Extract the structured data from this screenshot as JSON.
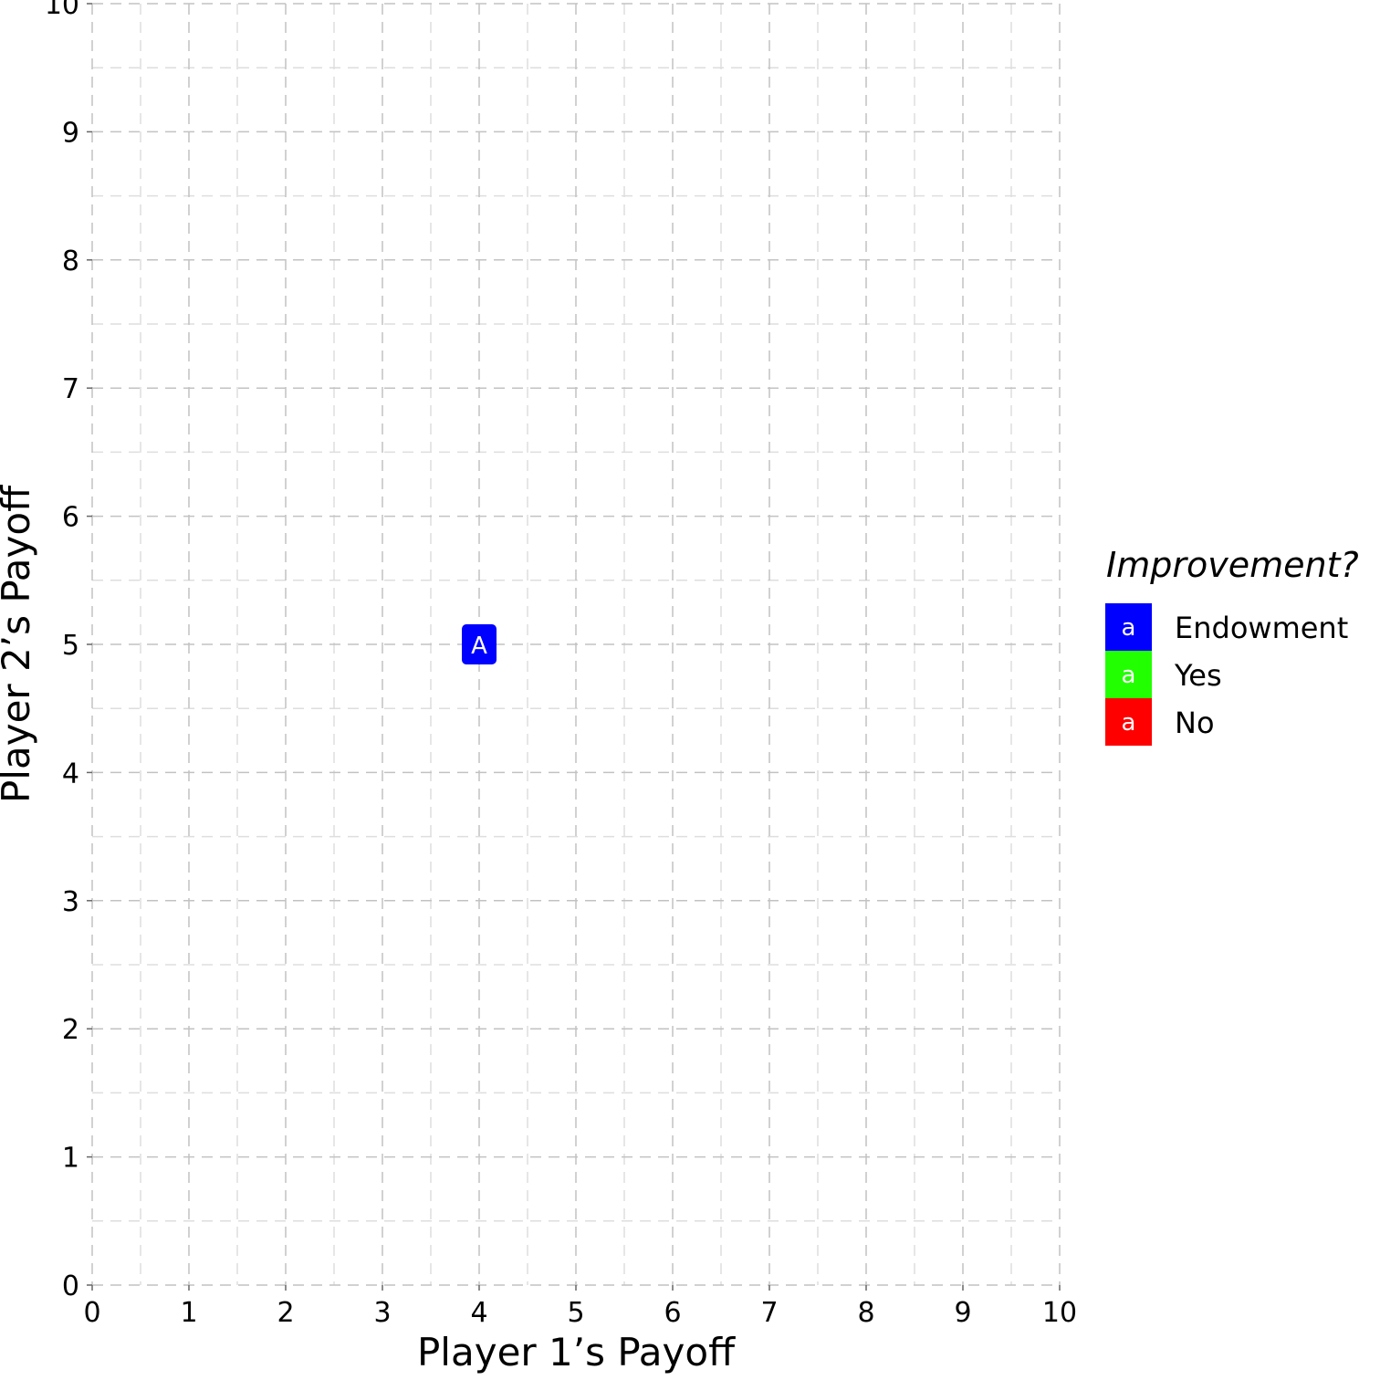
{
  "chart_data": {
    "type": "scatter",
    "xlabel": "Player 1’s Payoff",
    "ylabel": "Player 2’s Payoff",
    "xlim": [
      0,
      10
    ],
    "ylim": [
      0,
      10
    ],
    "x_ticks": [
      "0",
      "1",
      "2",
      "3",
      "4",
      "5",
      "6",
      "7",
      "8",
      "9",
      "10"
    ],
    "y_ticks": [
      "0",
      "1",
      "2",
      "3",
      "4",
      "5",
      "6",
      "7",
      "8",
      "9",
      "10"
    ],
    "grid": true,
    "grid_style": "dashed",
    "legend": {
      "title": "Improvement?",
      "placement": "right",
      "key_glyph": "a",
      "entries": [
        {
          "label": "Endowment",
          "color": "#0000ff"
        },
        {
          "label": "Yes",
          "color": "#22ff00"
        },
        {
          "label": "No",
          "color": "#ff0000"
        }
      ]
    },
    "points": [
      {
        "x": 4,
        "y": 5,
        "label": "A",
        "category": "Endowment",
        "color": "#0000ff"
      }
    ]
  }
}
